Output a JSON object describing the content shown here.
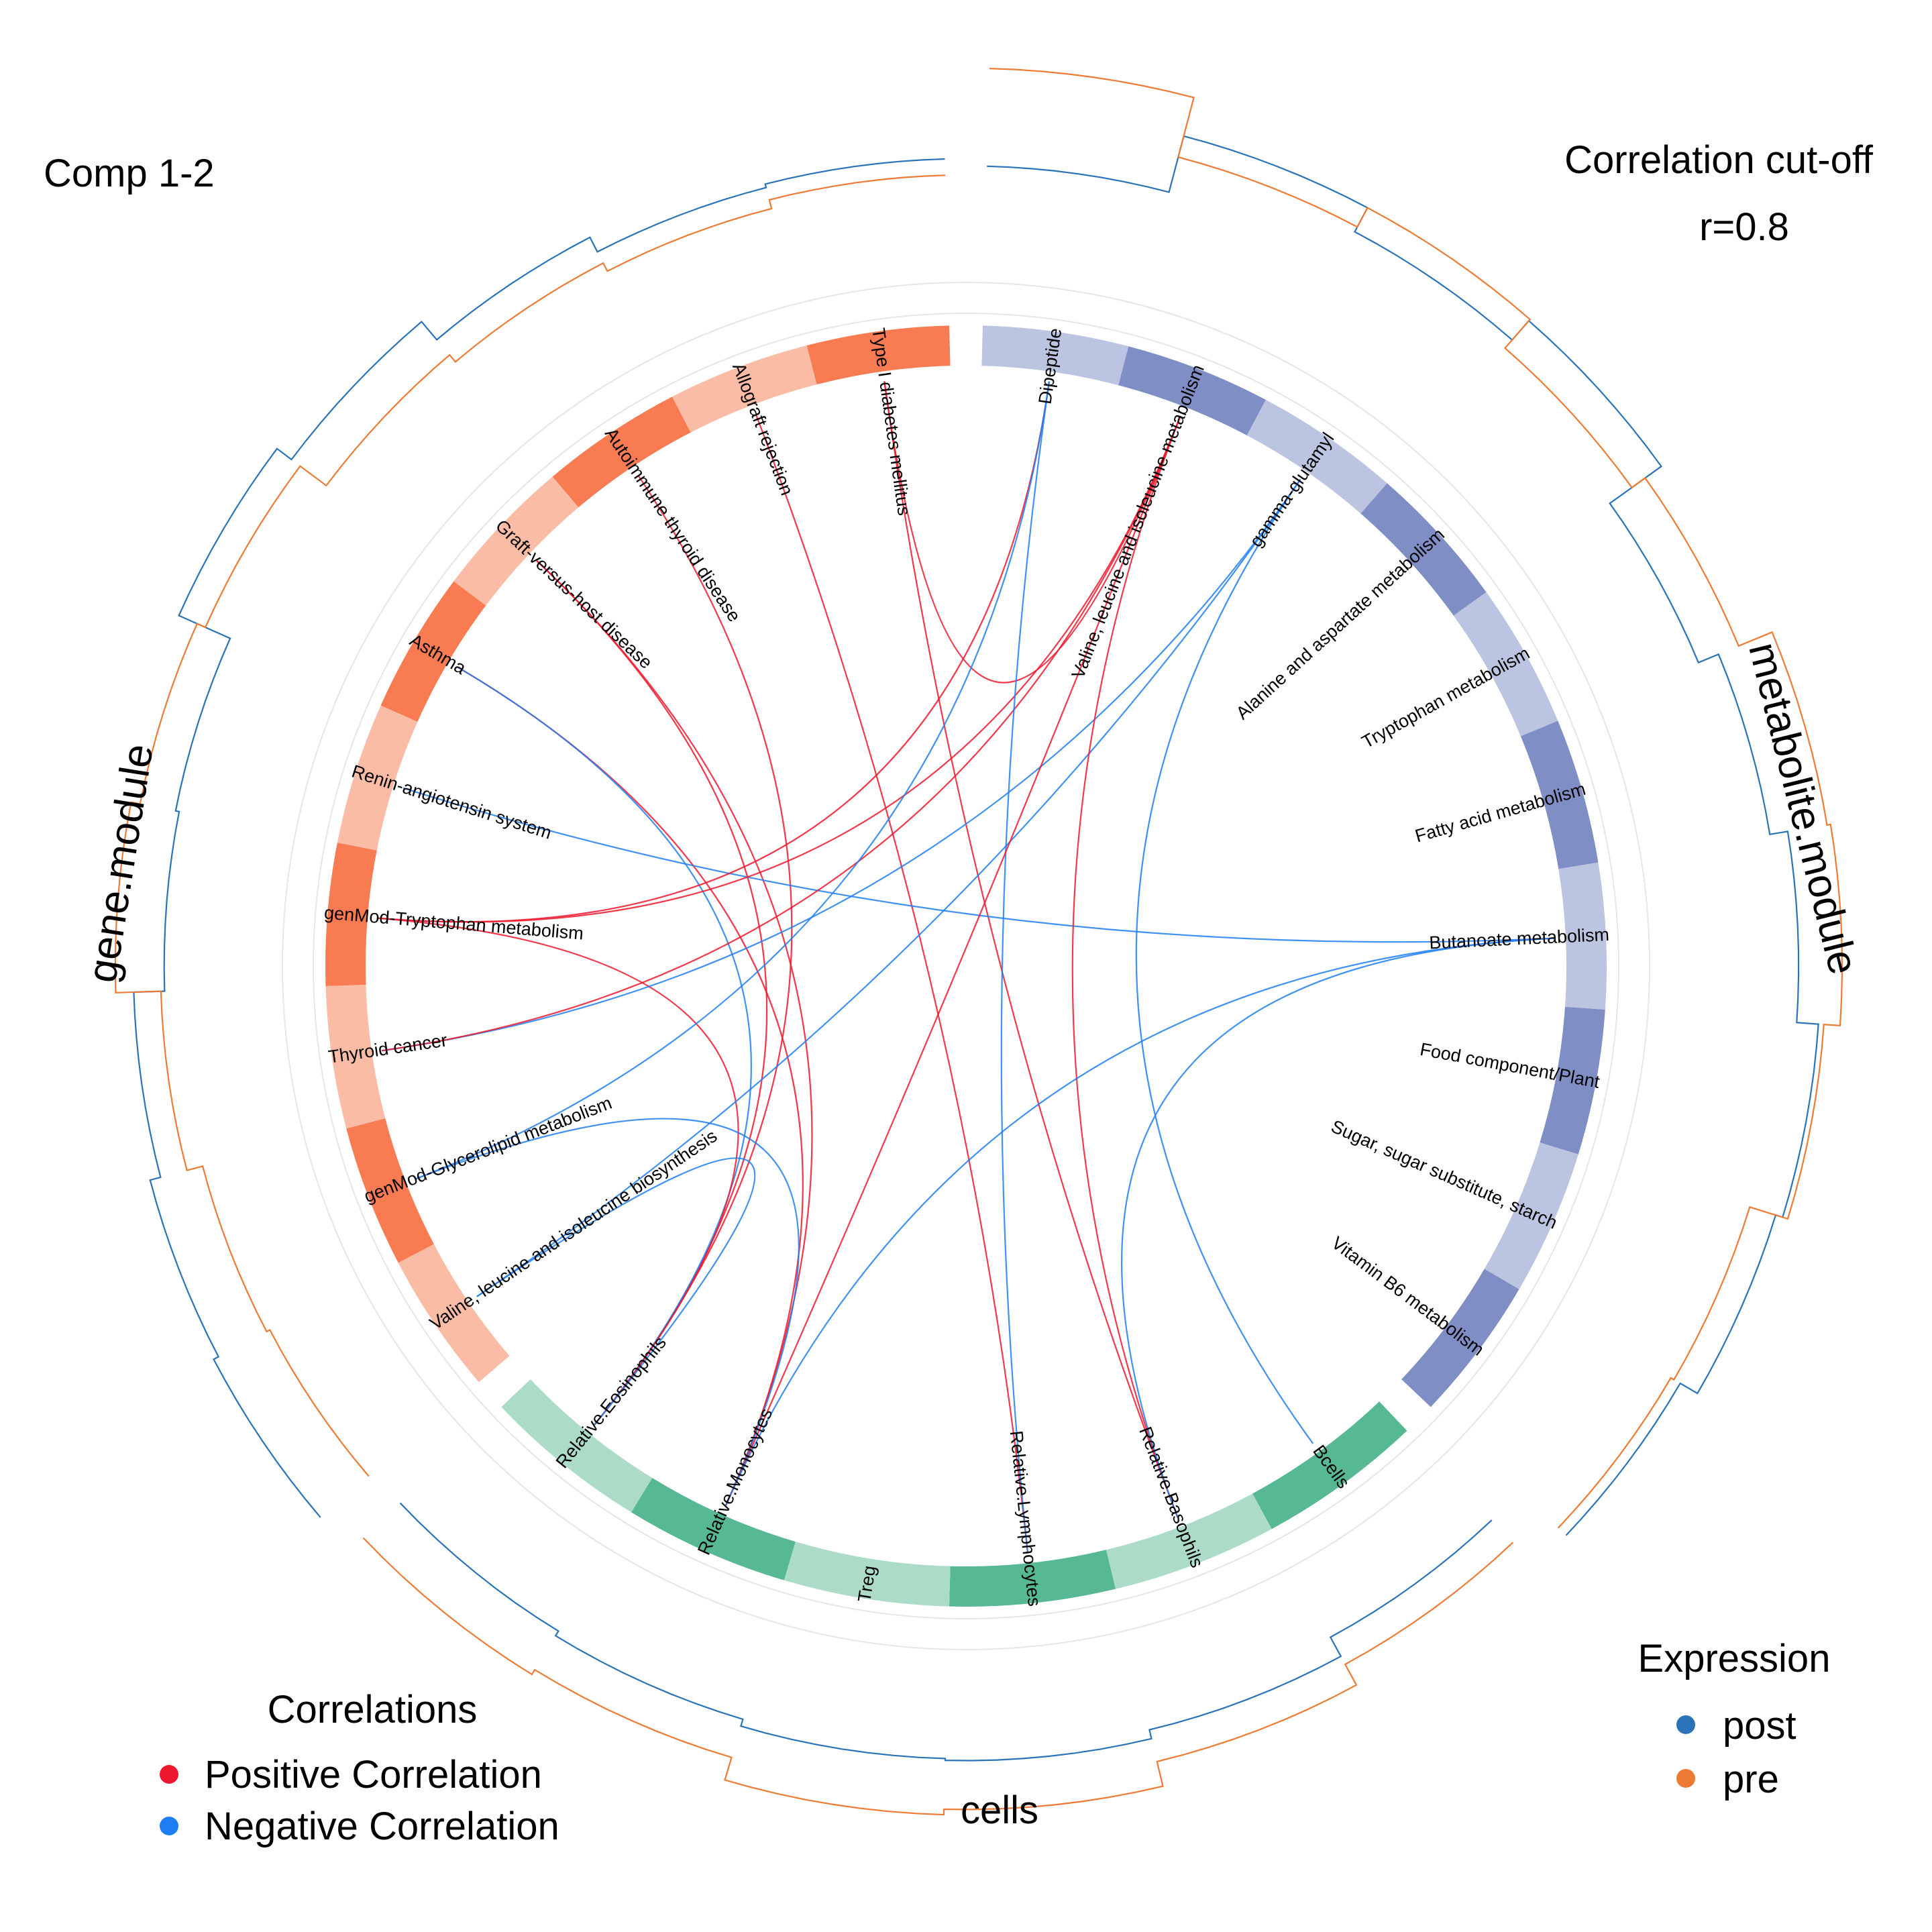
{
  "title": "Comp 1-2",
  "cutoff": {
    "title": "Correlation cut-off",
    "value": "r=0.8"
  },
  "block_titles": {
    "genes": "gene.module",
    "metabolites": "metabolite.module",
    "cells": "cells"
  },
  "legend_correlations": {
    "title": "Correlations",
    "positive": {
      "label": "Positive Correlation",
      "color": "#f0182e"
    },
    "negative": {
      "label": "Negative Correlation",
      "color": "#1f7ef2"
    }
  },
  "legend_expression": {
    "title": "Expression",
    "post": {
      "label": "post",
      "color": "#2a73b8"
    },
    "pre": {
      "label": "pre",
      "color": "#ee7b34"
    }
  },
  "colors": {
    "gene_dark": "#f97b52",
    "gene_light": "#fbbca6",
    "met_dark": "#7f8ec4",
    "met_light": "#bbc4e0",
    "cell_dark": "#56b993",
    "cell_light": "#acdcc8",
    "guide_circle": "#e6e6e6"
  },
  "genes": [
    {
      "label": "Type I diabetes mellitus",
      "shade": "dark",
      "pre": 0.33,
      "post": 0.42
    },
    {
      "label": "Allograft rejection",
      "shade": "light",
      "pre": 0.28,
      "post": 0.4
    },
    {
      "label": "Autoimmune thyroid disease",
      "shade": "dark",
      "pre": 0.33,
      "post": 0.49
    },
    {
      "label": "Graft-versus-host disease",
      "shade": "light",
      "pre": 0.38,
      "post": 0.62
    },
    {
      "label": "Asthma",
      "shade": "dark",
      "pre": 0.56,
      "post": 0.72
    },
    {
      "label": "Renin-angiotensin system",
      "shade": "light",
      "pre": 0.61,
      "post": 0.41
    },
    {
      "label": "genMod-Tryptophan metabolism",
      "shade": "dark",
      "pre": 0.66,
      "post": 0.39
    },
    {
      "label": "Thyroid cancer",
      "shade": "light",
      "pre": 0.41,
      "post": 0.56
    },
    {
      "label": "genMod-Glycerolipid metabolism",
      "shade": "dark",
      "pre": 0.32,
      "post": 0.62
    },
    {
      "label": "Valine, leucine and isoleucine biosynthesis",
      "shade": "light",
      "pre": 0.3,
      "post": 0.65
    }
  ],
  "metabolites": [
    {
      "label": "Dipeptide",
      "shade": "light",
      "pre": 0.92,
      "post": 0.38
    },
    {
      "label": "Valine, leucine and isoleucine metabolism",
      "shade": "dark",
      "pre": 0.58,
      "post": 0.7
    },
    {
      "label": "gamma-glutamyl",
      "shade": "light",
      "pre": 0.7,
      "post": 0.55
    },
    {
      "label": "Alanine and aspartate metabolism",
      "shade": "dark",
      "pre": 0.49,
      "post": 0.69
    },
    {
      "label": "Tryptophan metabolism",
      "shade": "light",
      "pre": 0.58,
      "post": 0.34
    },
    {
      "label": "Fatty acid metabolism",
      "shade": "dark",
      "pre": 0.78,
      "post": 0.46
    },
    {
      "label": "Butanoate metabolism",
      "shade": "light",
      "pre": 0.8,
      "post": 0.56
    },
    {
      "label": "Food component/Plant",
      "shade": "dark",
      "pre": 0.71,
      "post": 0.68
    },
    {
      "label": "Sugar, sugar substitute, starch",
      "shade": "light",
      "pre": 0.49,
      "post": 0.64
    },
    {
      "label": "Vitamin B6 metabolism",
      "shade": "dark",
      "pre": 0.47,
      "post": 0.53
    }
  ],
  "cells": [
    {
      "label": "Bcells",
      "shade": "dark",
      "pre": 0.35,
      "post": 0.18
    },
    {
      "label": "Relative.Basophils",
      "shade": "light",
      "pre": 0.48,
      "post": 0.3
    },
    {
      "label": "Relative.Lymphocytes",
      "shade": "dark",
      "pre": 0.62,
      "post": 0.35
    },
    {
      "label": "Treg",
      "shade": "light",
      "pre": 0.65,
      "post": 0.34
    },
    {
      "label": "Relative.Monocytes",
      "shade": "dark",
      "pre": 0.52,
      "post": 0.3
    },
    {
      "label": "Relative.Eosinophils",
      "shade": "light",
      "pre": 0.55,
      "post": 0.27
    }
  ],
  "links": [
    {
      "from": [
        "genes",
        0
      ],
      "to": [
        "cells",
        1
      ],
      "sign": "positive"
    },
    {
      "from": [
        "genes",
        0
      ],
      "to": [
        "metabolites",
        1
      ],
      "sign": "positive"
    },
    {
      "from": [
        "genes",
        1
      ],
      "to": [
        "cells",
        2
      ],
      "sign": "positive"
    },
    {
      "from": [
        "genes",
        2
      ],
      "to": [
        "cells",
        5
      ],
      "sign": "positive"
    },
    {
      "from": [
        "genes",
        3
      ],
      "to": [
        "cells",
        5
      ],
      "sign": "positive"
    },
    {
      "from": [
        "genes",
        3
      ],
      "to": [
        "cells",
        4
      ],
      "sign": "positive"
    },
    {
      "from": [
        "genes",
        4
      ],
      "to": [
        "cells",
        4
      ],
      "sign": "positive"
    },
    {
      "from": [
        "genes",
        4
      ],
      "to": [
        "cells",
        5
      ],
      "sign": "negative"
    },
    {
      "from": [
        "genes",
        5
      ],
      "to": [
        "metabolites",
        6
      ],
      "sign": "negative"
    },
    {
      "from": [
        "genes",
        6
      ],
      "to": [
        "metabolites",
        0
      ],
      "sign": "positive"
    },
    {
      "from": [
        "genes",
        6
      ],
      "to": [
        "metabolites",
        1
      ],
      "sign": "positive"
    },
    {
      "from": [
        "genes",
        6
      ],
      "to": [
        "cells",
        5
      ],
      "sign": "positive"
    },
    {
      "from": [
        "genes",
        7
      ],
      "to": [
        "metabolites",
        2
      ],
      "sign": "negative"
    },
    {
      "from": [
        "genes",
        7
      ],
      "to": [
        "metabolites",
        1
      ],
      "sign": "positive"
    },
    {
      "from": [
        "genes",
        8
      ],
      "to": [
        "metabolites",
        0
      ],
      "sign": "negative"
    },
    {
      "from": [
        "genes",
        8
      ],
      "to": [
        "cells",
        4
      ],
      "sign": "negative"
    },
    {
      "from": [
        "genes",
        9
      ],
      "to": [
        "metabolites",
        2
      ],
      "sign": "negative"
    },
    {
      "from": [
        "genes",
        9
      ],
      "to": [
        "cells",
        5
      ],
      "sign": "negative"
    },
    {
      "from": [
        "metabolites",
        0
      ],
      "to": [
        "cells",
        2
      ],
      "sign": "negative"
    },
    {
      "from": [
        "metabolites",
        1
      ],
      "to": [
        "cells",
        1
      ],
      "sign": "positive"
    },
    {
      "from": [
        "metabolites",
        1
      ],
      "to": [
        "cells",
        4
      ],
      "sign": "positive"
    },
    {
      "from": [
        "metabolites",
        2
      ],
      "to": [
        "cells",
        0
      ],
      "sign": "negative"
    },
    {
      "from": [
        "metabolites",
        6
      ],
      "to": [
        "cells",
        1
      ],
      "sign": "negative"
    },
    {
      "from": [
        "metabolites",
        6
      ],
      "to": [
        "cells",
        4
      ],
      "sign": "negative"
    }
  ]
}
